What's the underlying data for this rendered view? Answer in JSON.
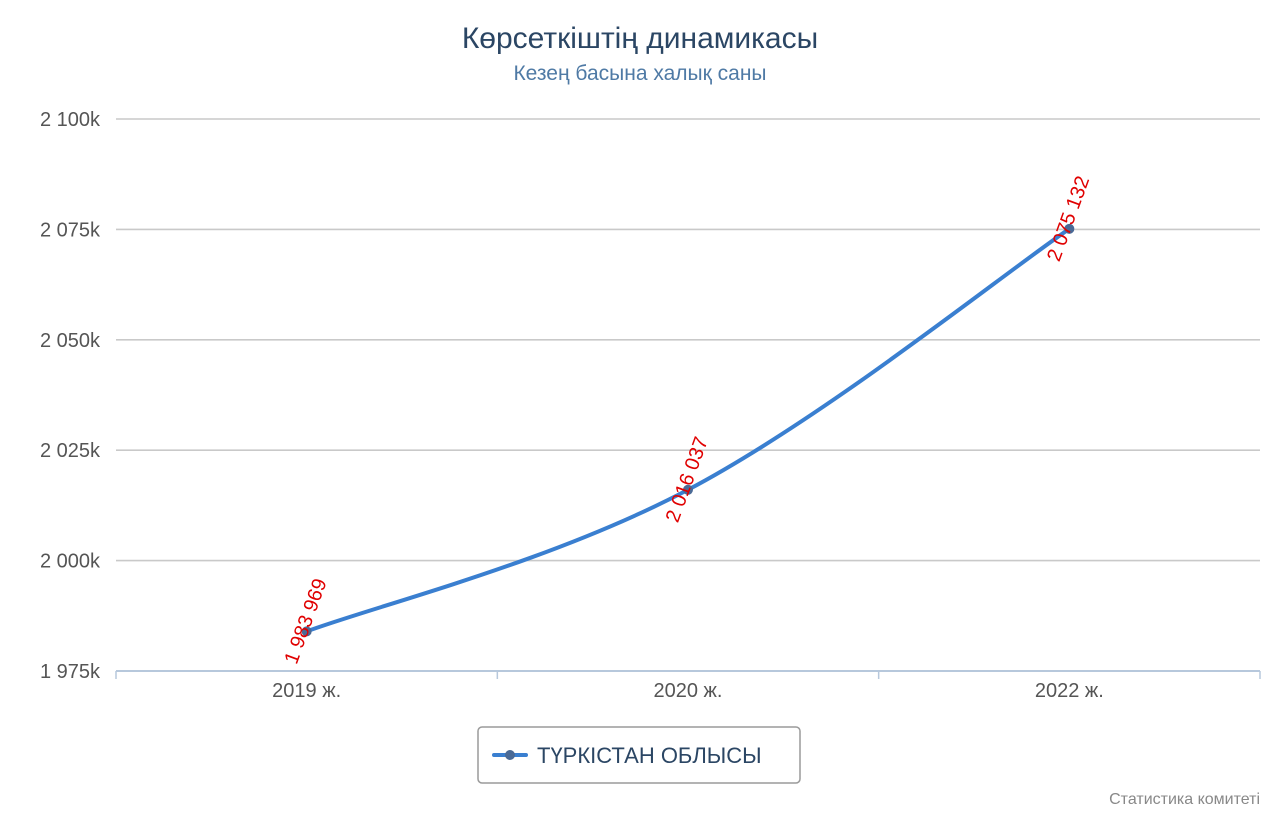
{
  "chart_data": {
    "type": "line",
    "title": "Көрсеткіштің динамикасы",
    "subtitle": "Кезең басына халық саны",
    "categories": [
      "2019 ж.",
      "2020 ж.",
      "2022 ж."
    ],
    "series": [
      {
        "name": "ТҮРКІСТАН ОБЛЫСЫ",
        "values": [
          1983969,
          2016037,
          2075132
        ],
        "labels": [
          "1 983 969",
          "2 016 037",
          "2 075 132"
        ],
        "color": "#3a7fd0"
      }
    ],
    "y_ticks": [
      {
        "value": 1975000,
        "label": "1 975k"
      },
      {
        "value": 2000000,
        "label": "2 000k"
      },
      {
        "value": 2025000,
        "label": "2 025k"
      },
      {
        "value": 2050000,
        "label": "2 050k"
      },
      {
        "value": 2075000,
        "label": "2 075k"
      },
      {
        "value": 2100000,
        "label": "2 100k"
      }
    ],
    "ylim": [
      1975000,
      2100000
    ],
    "grid": true,
    "legend_position": "bottom-center",
    "data_label_color": "#e00000",
    "credit": "Статистика комитеті"
  }
}
